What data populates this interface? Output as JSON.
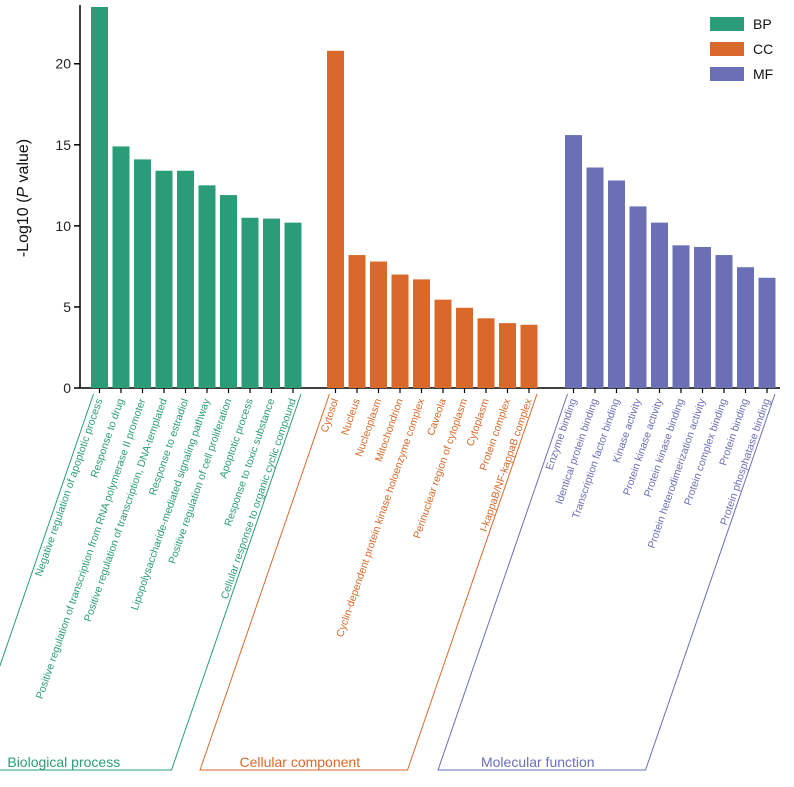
{
  "chart_data": {
    "type": "bar",
    "ylabel_prefix": "-Log10 (",
    "ylabel_italic": "P",
    "ylabel_suffix": " value)",
    "ylim": [
      0,
      23.5
    ],
    "yticks": [
      "0",
      "5",
      "10",
      "15",
      "20"
    ],
    "legend_position": "top-right",
    "series": [
      {
        "name": "BP",
        "group_label": "Biological process",
        "color": "#2a9d78",
        "categories": [
          "Negative regulation of apoptotic process",
          "Response to drug",
          "Positive regulation of transcription from RNA polymerase II promoter",
          "Positive regulation of transcription, DNA-templated",
          "Response to estradiol",
          "Lipopolysaccharide-mediated signaling pathway",
          "Positive regulation of cell proliferation",
          "Apoptotic process",
          "Response to toxic substance",
          "Cellular response to organic cyclic compound"
        ],
        "values": [
          23.5,
          14.9,
          14.1,
          13.4,
          13.4,
          12.5,
          11.9,
          10.5,
          10.45,
          10.2
        ]
      },
      {
        "name": "CC",
        "group_label": "Cellular component",
        "color": "#d9692a",
        "categories": [
          "Cytosol",
          "Nucleus",
          "Nucleoplasm",
          "Mitochondrion",
          "Cyclin-dependent protein kinase holoenzyme complex",
          "Caveola",
          "Perinuclear region of cytoplasm",
          "Cytoplasm",
          "Protein complex",
          "I-kappaB/NF-kappaB complex"
        ],
        "values": [
          20.8,
          8.2,
          7.8,
          7.0,
          6.7,
          5.45,
          4.95,
          4.3,
          4.0,
          3.9
        ]
      },
      {
        "name": "MF",
        "group_label": "Molecular function",
        "color": "#6b6fb6",
        "categories": [
          "Enzyme binding",
          "Identical protein binding",
          "Transcription factor binding",
          "Kinase activity",
          "Protein kinase activity",
          "Protein kinase binding",
          "Protein heterodimerization activity",
          "Protein complex binding",
          "Protein binding",
          "Protein phosphatase binding"
        ],
        "values": [
          15.6,
          13.6,
          12.8,
          11.2,
          10.2,
          8.8,
          8.7,
          8.2,
          7.45,
          6.8
        ]
      }
    ]
  }
}
